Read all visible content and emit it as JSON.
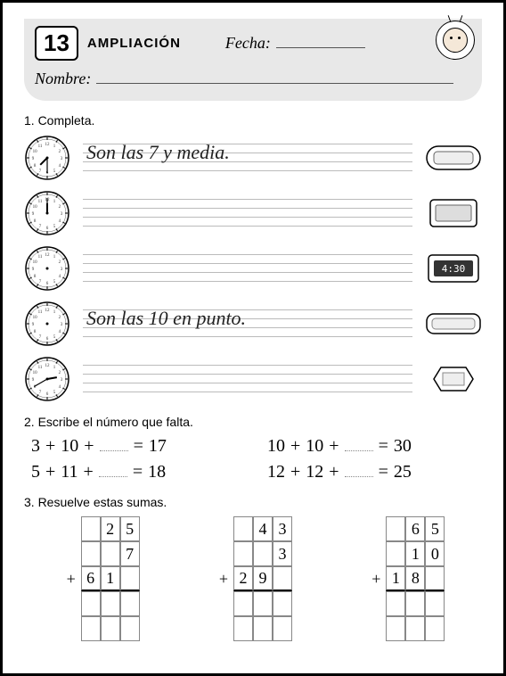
{
  "header": {
    "lesson_number": "13",
    "title": "AMPLIACIÓN",
    "fecha_label": "Fecha:",
    "nombre_label": "Nombre:"
  },
  "section1": {
    "title": "1. Completa.",
    "rows": [
      {
        "clock": {
          "hour": 7,
          "minute": 30
        },
        "text": "Son las 7 y media.",
        "digital_type": "rounded"
      },
      {
        "clock": {
          "hour": 12,
          "minute": 0
        },
        "text": "",
        "digital_type": "square"
      },
      {
        "clock": {
          "hour": null,
          "minute": null
        },
        "text": "",
        "digital_type": "digital",
        "digital_value": "4:30"
      },
      {
        "clock": {
          "hour": null,
          "minute": null
        },
        "text": "Son las 10 en punto.",
        "digital_type": "pill"
      },
      {
        "clock": {
          "hour": 2,
          "minute": 40
        },
        "text": "",
        "digital_type": "hex"
      }
    ]
  },
  "section2": {
    "title": "2. Escribe el número que falta.",
    "equations": [
      {
        "a": "3",
        "b": "10",
        "result": "17"
      },
      {
        "a": "10",
        "b": "10",
        "result": "30"
      },
      {
        "a": "5",
        "b": "11",
        "result": "18"
      },
      {
        "a": "12",
        "b": "12",
        "result": "25"
      }
    ]
  },
  "section3": {
    "title": "3. Resuelve estas sumas.",
    "sums": [
      {
        "rows": [
          [
            "",
            "2",
            "5"
          ],
          [
            "",
            "",
            "7"
          ],
          [
            "6",
            "1",
            ""
          ]
        ],
        "op": "+"
      },
      {
        "rows": [
          [
            "",
            "4",
            "3"
          ],
          [
            "",
            "",
            "3"
          ],
          [
            "2",
            "9",
            ""
          ]
        ],
        "op": "+"
      },
      {
        "rows": [
          [
            "",
            "6",
            "5"
          ],
          [
            "",
            "1",
            "0"
          ],
          [
            "1",
            "8",
            ""
          ]
        ],
        "op": "+"
      }
    ]
  },
  "colors": {
    "band": "#e8e8e8",
    "line": "#888888",
    "text": "#000000"
  }
}
